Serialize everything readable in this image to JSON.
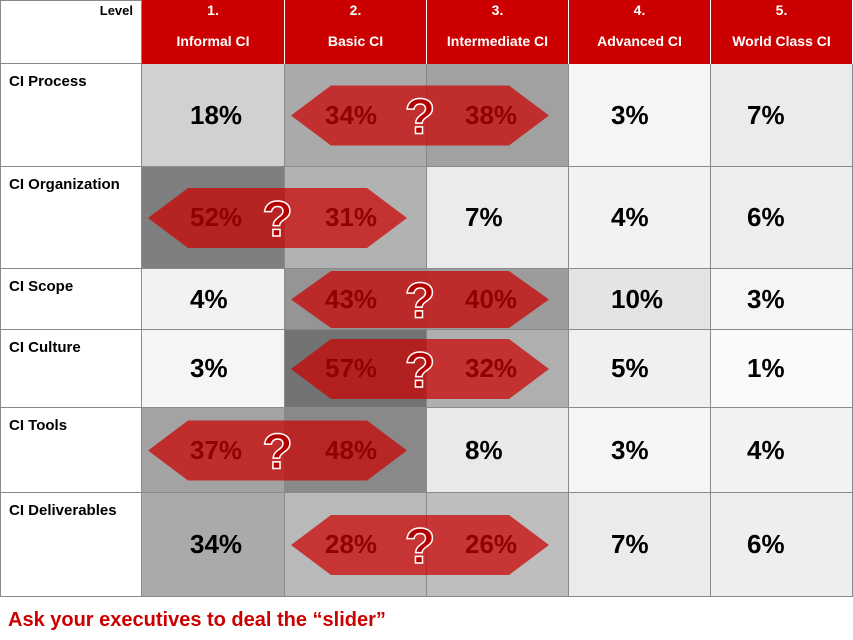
{
  "chart_data": {
    "type": "table",
    "level_label": "Level",
    "columns": [
      {
        "number": "1.",
        "name": "Informal CI"
      },
      {
        "number": "2.",
        "name": "Basic CI"
      },
      {
        "number": "3.",
        "name": "Intermediate CI"
      },
      {
        "number": "4.",
        "name": "Advanced CI"
      },
      {
        "number": "5.",
        "name": "World Class CI"
      }
    ],
    "rows": [
      {
        "label": "CI Process",
        "values": [
          18,
          34,
          38,
          3,
          7
        ]
      },
      {
        "label": "CI Organization",
        "values": [
          52,
          31,
          7,
          4,
          6
        ]
      },
      {
        "label": "CI Scope",
        "values": [
          4,
          43,
          40,
          10,
          3
        ]
      },
      {
        "label": "CI Culture",
        "values": [
          3,
          57,
          32,
          5,
          1
        ]
      },
      {
        "label": "CI Tools",
        "values": [
          37,
          48,
          8,
          3,
          4
        ]
      },
      {
        "label": "CI Deliverables",
        "values": [
          34,
          28,
          26,
          7,
          6
        ]
      }
    ],
    "value_suffix": "%",
    "sliders": [
      {
        "row": 0,
        "from_col": 1,
        "to_col": 2,
        "label": "?"
      },
      {
        "row": 1,
        "from_col": 0,
        "to_col": 1,
        "label": "?"
      },
      {
        "row": 2,
        "from_col": 1,
        "to_col": 2,
        "label": "?"
      },
      {
        "row": 3,
        "from_col": 1,
        "to_col": 2,
        "label": "?"
      },
      {
        "row": 4,
        "from_col": 0,
        "to_col": 1,
        "label": "?"
      },
      {
        "row": 5,
        "from_col": 1,
        "to_col": 2,
        "label": "?"
      }
    ],
    "colors": {
      "header_bg": "#cc0000",
      "header_text": "#ffffff",
      "slider_fill": "#cc0000",
      "question_mark": "#b30000",
      "caption_text": "#cc0000"
    }
  },
  "caption": "Ask your executives to deal the “slider”"
}
